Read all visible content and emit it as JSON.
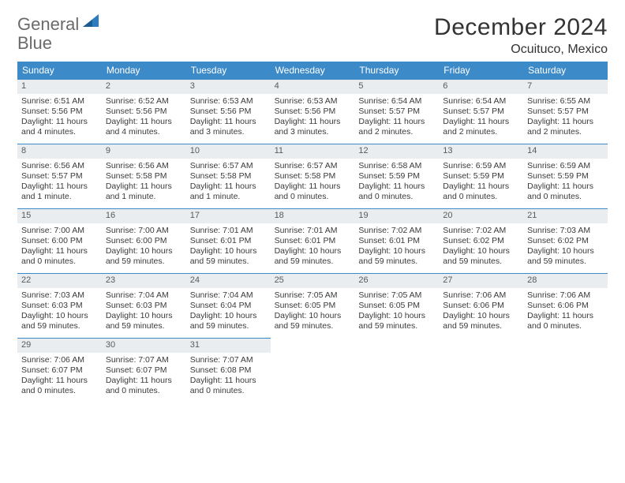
{
  "logo": {
    "text1": "General",
    "text2": "Blue"
  },
  "title": "December 2024",
  "location": "Ocuituco, Mexico",
  "colors": {
    "header_bg": "#3d8ac9",
    "header_text": "#ffffff",
    "daynum_bg": "#e9edef",
    "rule": "#3d8ac9",
    "body_text": "#333333",
    "logo_gray": "#6a6a6a",
    "logo_blue": "#2f7bbf"
  },
  "dows": [
    "Sunday",
    "Monday",
    "Tuesday",
    "Wednesday",
    "Thursday",
    "Friday",
    "Saturday"
  ],
  "days": [
    {
      "n": "1",
      "sunrise": "6:51 AM",
      "sunset": "5:56 PM",
      "daylight": "11 hours and 4 minutes."
    },
    {
      "n": "2",
      "sunrise": "6:52 AM",
      "sunset": "5:56 PM",
      "daylight": "11 hours and 4 minutes."
    },
    {
      "n": "3",
      "sunrise": "6:53 AM",
      "sunset": "5:56 PM",
      "daylight": "11 hours and 3 minutes."
    },
    {
      "n": "4",
      "sunrise": "6:53 AM",
      "sunset": "5:56 PM",
      "daylight": "11 hours and 3 minutes."
    },
    {
      "n": "5",
      "sunrise": "6:54 AM",
      "sunset": "5:57 PM",
      "daylight": "11 hours and 2 minutes."
    },
    {
      "n": "6",
      "sunrise": "6:54 AM",
      "sunset": "5:57 PM",
      "daylight": "11 hours and 2 minutes."
    },
    {
      "n": "7",
      "sunrise": "6:55 AM",
      "sunset": "5:57 PM",
      "daylight": "11 hours and 2 minutes."
    },
    {
      "n": "8",
      "sunrise": "6:56 AM",
      "sunset": "5:57 PM",
      "daylight": "11 hours and 1 minute."
    },
    {
      "n": "9",
      "sunrise": "6:56 AM",
      "sunset": "5:58 PM",
      "daylight": "11 hours and 1 minute."
    },
    {
      "n": "10",
      "sunrise": "6:57 AM",
      "sunset": "5:58 PM",
      "daylight": "11 hours and 1 minute."
    },
    {
      "n": "11",
      "sunrise": "6:57 AM",
      "sunset": "5:58 PM",
      "daylight": "11 hours and 0 minutes."
    },
    {
      "n": "12",
      "sunrise": "6:58 AM",
      "sunset": "5:59 PM",
      "daylight": "11 hours and 0 minutes."
    },
    {
      "n": "13",
      "sunrise": "6:59 AM",
      "sunset": "5:59 PM",
      "daylight": "11 hours and 0 minutes."
    },
    {
      "n": "14",
      "sunrise": "6:59 AM",
      "sunset": "5:59 PM",
      "daylight": "11 hours and 0 minutes."
    },
    {
      "n": "15",
      "sunrise": "7:00 AM",
      "sunset": "6:00 PM",
      "daylight": "11 hours and 0 minutes."
    },
    {
      "n": "16",
      "sunrise": "7:00 AM",
      "sunset": "6:00 PM",
      "daylight": "10 hours and 59 minutes."
    },
    {
      "n": "17",
      "sunrise": "7:01 AM",
      "sunset": "6:01 PM",
      "daylight": "10 hours and 59 minutes."
    },
    {
      "n": "18",
      "sunrise": "7:01 AM",
      "sunset": "6:01 PM",
      "daylight": "10 hours and 59 minutes."
    },
    {
      "n": "19",
      "sunrise": "7:02 AM",
      "sunset": "6:01 PM",
      "daylight": "10 hours and 59 minutes."
    },
    {
      "n": "20",
      "sunrise": "7:02 AM",
      "sunset": "6:02 PM",
      "daylight": "10 hours and 59 minutes."
    },
    {
      "n": "21",
      "sunrise": "7:03 AM",
      "sunset": "6:02 PM",
      "daylight": "10 hours and 59 minutes."
    },
    {
      "n": "22",
      "sunrise": "7:03 AM",
      "sunset": "6:03 PM",
      "daylight": "10 hours and 59 minutes."
    },
    {
      "n": "23",
      "sunrise": "7:04 AM",
      "sunset": "6:03 PM",
      "daylight": "10 hours and 59 minutes."
    },
    {
      "n": "24",
      "sunrise": "7:04 AM",
      "sunset": "6:04 PM",
      "daylight": "10 hours and 59 minutes."
    },
    {
      "n": "25",
      "sunrise": "7:05 AM",
      "sunset": "6:05 PM",
      "daylight": "10 hours and 59 minutes."
    },
    {
      "n": "26",
      "sunrise": "7:05 AM",
      "sunset": "6:05 PM",
      "daylight": "10 hours and 59 minutes."
    },
    {
      "n": "27",
      "sunrise": "7:06 AM",
      "sunset": "6:06 PM",
      "daylight": "10 hours and 59 minutes."
    },
    {
      "n": "28",
      "sunrise": "7:06 AM",
      "sunset": "6:06 PM",
      "daylight": "11 hours and 0 minutes."
    },
    {
      "n": "29",
      "sunrise": "7:06 AM",
      "sunset": "6:07 PM",
      "daylight": "11 hours and 0 minutes."
    },
    {
      "n": "30",
      "sunrise": "7:07 AM",
      "sunset": "6:07 PM",
      "daylight": "11 hours and 0 minutes."
    },
    {
      "n": "31",
      "sunrise": "7:07 AM",
      "sunset": "6:08 PM",
      "daylight": "11 hours and 0 minutes."
    }
  ],
  "labels": {
    "sunrise": "Sunrise: ",
    "sunset": "Sunset: ",
    "daylight": "Daylight: "
  },
  "layout": {
    "first_day_column_index": 0,
    "total_cells": 35
  }
}
